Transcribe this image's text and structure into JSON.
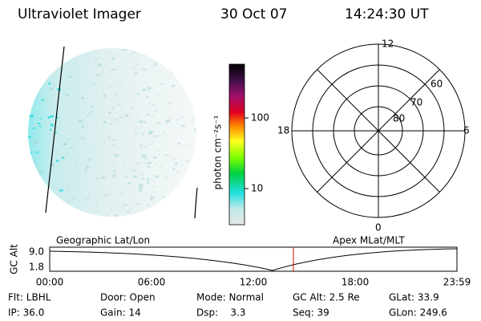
{
  "header": {
    "instrument": "Ultraviolet Imager",
    "date": "30 Oct 07",
    "time": "14:24:30 UT"
  },
  "colorbar": {
    "label": "photon cm⁻²s⁻¹",
    "ticks": [
      "100",
      "10"
    ]
  },
  "polar_plot": {
    "mlt_labels": {
      "top": "12",
      "right": "6",
      "bottom": "0",
      "left": "18"
    },
    "lat_labels": [
      "60",
      "70",
      "80"
    ]
  },
  "altitude_plot": {
    "ylabel": "GC Alt",
    "yticks": [
      "9.0",
      "1.8"
    ],
    "left_title": "Geographic Lat/Lon",
    "right_title": "Apex MLat/MLT",
    "xticks": [
      "00:00",
      "06:00",
      "12:00",
      "18:00",
      "23:59"
    ]
  },
  "info": {
    "rows": [
      [
        "Flt: LBHL",
        "Door: Open",
        "Mode: Normal",
        "GC Alt: 2.5 Re",
        "GLat: 33.9"
      ],
      [
        "IP: 36.0",
        "Gain: 14",
        "Dsp:    3.3",
        "Seq: 39",
        "GLon: 249.6"
      ]
    ]
  }
}
